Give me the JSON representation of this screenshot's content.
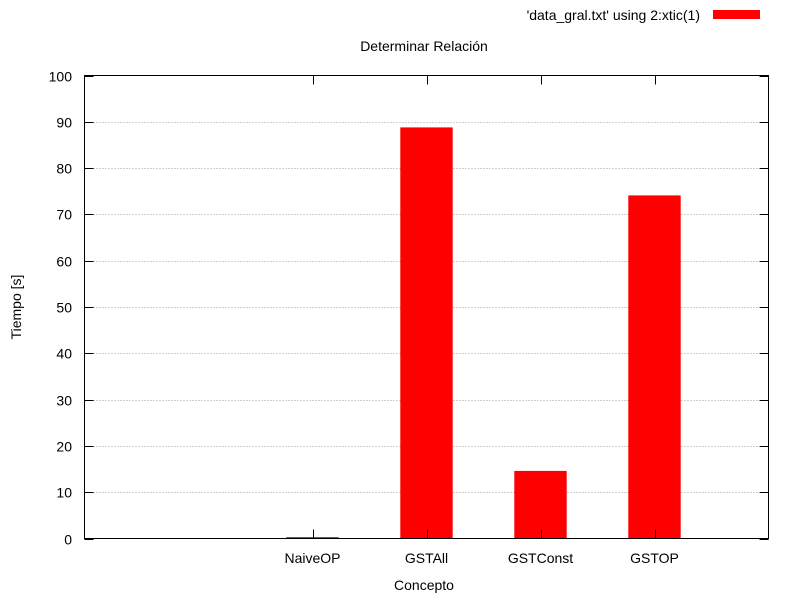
{
  "chart_data": {
    "type": "bar",
    "title": "Determinar Relación",
    "xlabel": "Concepto",
    "ylabel": "Tiempo [s]",
    "ylim": [
      0,
      100
    ],
    "yticks": [
      0,
      10,
      20,
      30,
      40,
      50,
      60,
      70,
      80,
      90,
      100
    ],
    "grid": true,
    "legend_position": "top-right",
    "categories": [
      "NaiveOP",
      "GSTAll",
      "GSTConst",
      "GSTOP"
    ],
    "series": [
      {
        "name": "'data_gral.txt' using 2:xtic(1)",
        "color": "#ff0000",
        "values": [
          0.3,
          88.8,
          14.6,
          74.1
        ]
      }
    ]
  }
}
